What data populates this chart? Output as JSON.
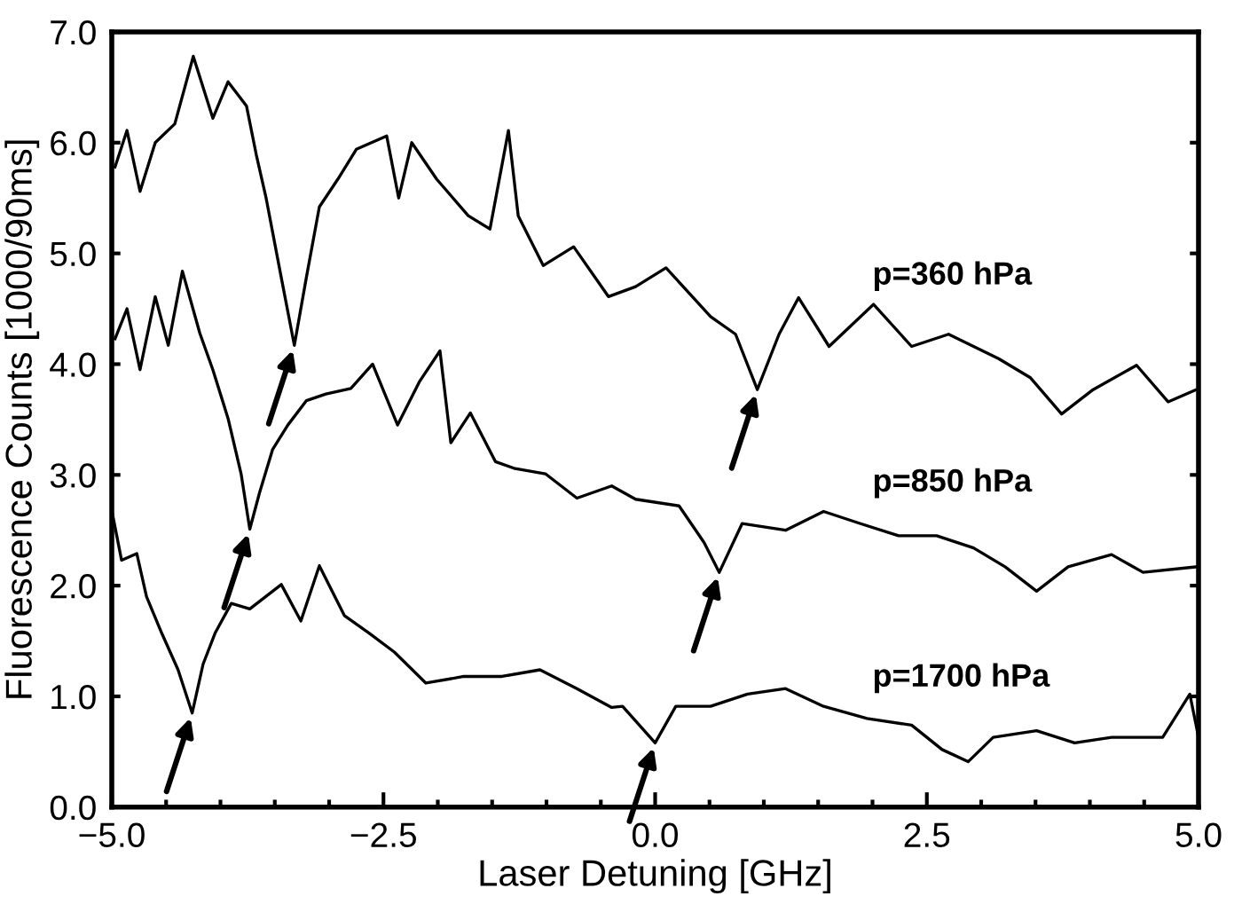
{
  "chart_data": {
    "type": "line",
    "xlabel": "Laser Detuning [GHz]",
    "ylabel": "Fluorescence Counts [1000/90ms]",
    "xlim": [
      -5,
      5
    ],
    "ylim": [
      0,
      7
    ],
    "xticks": [
      {
        "value": -5,
        "label": "−5.0"
      },
      {
        "value": -4.5,
        "label": null
      },
      {
        "value": -4,
        "label": null
      },
      {
        "value": -3.5,
        "label": null
      },
      {
        "value": -3,
        "label": null
      },
      {
        "value": -2.5,
        "label": "−2.5"
      },
      {
        "value": -2,
        "label": null
      },
      {
        "value": -1.5,
        "label": null
      },
      {
        "value": -1,
        "label": null
      },
      {
        "value": -0.5,
        "label": null
      },
      {
        "value": 0,
        "label": "0.0"
      },
      {
        "value": 0.5,
        "label": null
      },
      {
        "value": 1,
        "label": null
      },
      {
        "value": 1.5,
        "label": null
      },
      {
        "value": 2,
        "label": null
      },
      {
        "value": 2.5,
        "label": "2.5"
      },
      {
        "value": 3,
        "label": null
      },
      {
        "value": 3.5,
        "label": null
      },
      {
        "value": 4,
        "label": null
      },
      {
        "value": 4.5,
        "label": null
      },
      {
        "value": 5,
        "label": "5.0"
      }
    ],
    "yticks": [
      {
        "value": 0,
        "label": "0.0"
      },
      {
        "value": 1,
        "label": "1.0"
      },
      {
        "value": 2,
        "label": "2.0"
      },
      {
        "value": 3,
        "label": "3.0"
      },
      {
        "value": 4,
        "label": "4.0"
      },
      {
        "value": 5,
        "label": "5.0"
      },
      {
        "value": 6,
        "label": "6.0"
      },
      {
        "value": 7,
        "label": "7.0"
      }
    ],
    "grid": false,
    "legend": false,
    "marker": "none",
    "line_style": "solid",
    "series": [
      {
        "name": "p=360 hPa",
        "color": "#000000",
        "x": [
          -4.97,
          -4.86,
          -4.74,
          -4.6,
          -4.42,
          -4.25,
          -4.07,
          -3.93,
          -3.76,
          -3.67,
          -3.58,
          -3.44,
          -3.32,
          -3.21,
          -3.09,
          -2.92,
          -2.75,
          -2.47,
          -2.36,
          -2.24,
          -2.01,
          -1.72,
          -1.52,
          -1.35,
          -1.26,
          -1.03,
          -0.75,
          -0.43,
          -0.18,
          0.1,
          0.51,
          0.74,
          0.94,
          1.14,
          1.32,
          1.6,
          2.01,
          2.36,
          2.7,
          3.16,
          3.45,
          3.74,
          4.03,
          4.43,
          4.72,
          4.98
        ],
        "values": [
          5.78,
          6.11,
          5.56,
          6.0,
          6.17,
          6.78,
          6.22,
          6.55,
          6.33,
          5.89,
          5.5,
          4.78,
          4.17,
          4.78,
          5.42,
          5.67,
          5.94,
          6.06,
          5.5,
          6.0,
          5.67,
          5.34,
          5.22,
          6.11,
          5.34,
          4.89,
          5.06,
          4.61,
          4.7,
          4.87,
          4.43,
          4.27,
          3.77,
          4.27,
          4.6,
          4.16,
          4.54,
          4.16,
          4.27,
          4.05,
          3.88,
          3.55,
          3.77,
          3.99,
          3.66,
          3.77
        ]
      },
      {
        "name": "p=850 hPa",
        "color": "#000000",
        "x": [
          -4.97,
          -4.86,
          -4.74,
          -4.6,
          -4.48,
          -4.35,
          -4.19,
          -4.07,
          -3.93,
          -3.81,
          -3.73,
          -3.64,
          -3.52,
          -3.38,
          -3.21,
          -3.03,
          -2.8,
          -2.6,
          -2.37,
          -2.17,
          -1.98,
          -1.88,
          -1.7,
          -1.47,
          -1.3,
          -1.01,
          -0.72,
          -0.4,
          -0.18,
          0.22,
          0.45,
          0.59,
          0.8,
          1.2,
          1.55,
          1.89,
          2.24,
          2.59,
          2.93,
          3.22,
          3.51,
          3.8,
          4.2,
          4.49,
          4.98
        ],
        "values": [
          4.23,
          4.5,
          3.95,
          4.61,
          4.17,
          4.84,
          4.28,
          3.95,
          3.51,
          3.01,
          2.51,
          2.84,
          3.23,
          3.45,
          3.67,
          3.73,
          3.78,
          4.0,
          3.45,
          3.84,
          4.12,
          3.29,
          3.56,
          3.12,
          3.06,
          3.01,
          2.79,
          2.9,
          2.78,
          2.72,
          2.39,
          2.12,
          2.56,
          2.5,
          2.67,
          2.56,
          2.45,
          2.45,
          2.34,
          2.17,
          1.95,
          2.17,
          2.28,
          2.12,
          2.17
        ]
      },
      {
        "name": "p=1700 hPa",
        "color": "#000000",
        "x": [
          -5.0,
          -4.91,
          -4.77,
          -4.68,
          -4.54,
          -4.39,
          -4.26,
          -4.16,
          -4.05,
          -3.9,
          -3.73,
          -3.44,
          -3.26,
          -3.09,
          -2.86,
          -2.63,
          -2.4,
          -2.11,
          -1.76,
          -1.41,
          -1.06,
          -0.72,
          -0.4,
          -0.3,
          0.0,
          0.19,
          0.51,
          0.85,
          1.2,
          1.55,
          1.95,
          2.36,
          2.64,
          2.88,
          3.11,
          3.51,
          3.86,
          4.2,
          4.67,
          4.92,
          5.0
        ],
        "values": [
          2.68,
          2.23,
          2.29,
          1.9,
          1.57,
          1.24,
          0.85,
          1.29,
          1.57,
          1.84,
          1.79,
          2.01,
          1.68,
          2.18,
          1.73,
          1.57,
          1.4,
          1.12,
          1.18,
          1.18,
          1.24,
          1.07,
          0.9,
          0.91,
          0.58,
          0.91,
          0.91,
          1.02,
          1.07,
          0.91,
          0.8,
          0.74,
          0.52,
          0.41,
          0.63,
          0.69,
          0.58,
          0.63,
          0.63,
          1.02,
          0.63
        ]
      }
    ]
  }
}
